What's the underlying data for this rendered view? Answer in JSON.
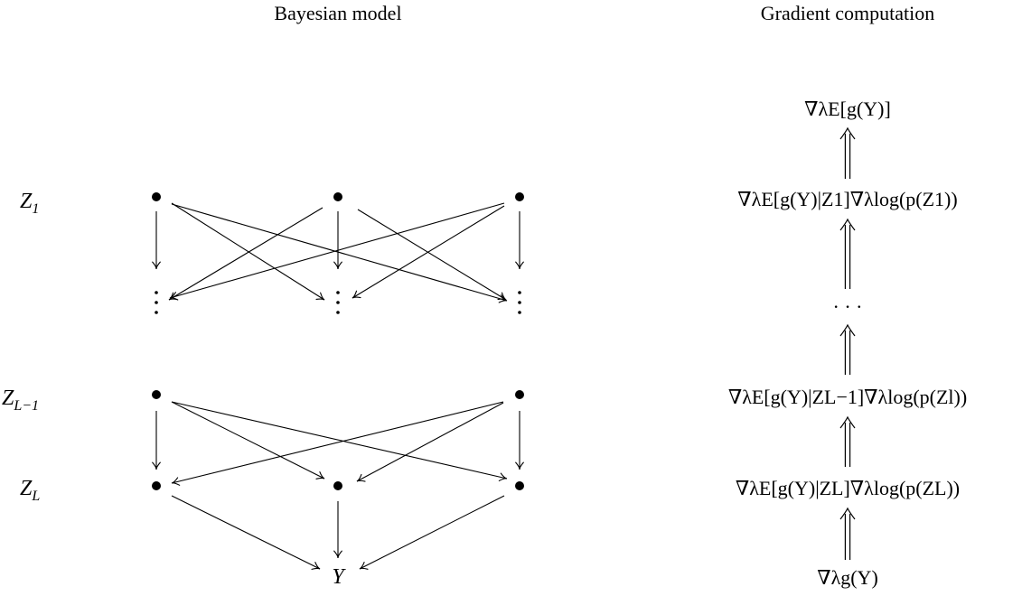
{
  "titles": {
    "left": "Bayesian model",
    "right": "Gradient computation"
  },
  "layers": {
    "z1": {
      "base": "Z",
      "sub": "1"
    },
    "zl_minus_1": {
      "base": "Z",
      "sub": "L−1"
    },
    "zl": {
      "base": "Z",
      "sub": "L"
    }
  },
  "output_node": {
    "base": "Y"
  },
  "gradient_steps": [
    "∇λE[g(Y)]",
    "∇λE[g(Y)|Z1]∇λlog(p(Z1))",
    "· · ·",
    "∇λE[g(Y)|ZL−1]∇λlog(p(Zl))",
    "∇λE[g(Y)|ZL]∇λlog(p(ZL))",
    "∇λg(Y)"
  ]
}
